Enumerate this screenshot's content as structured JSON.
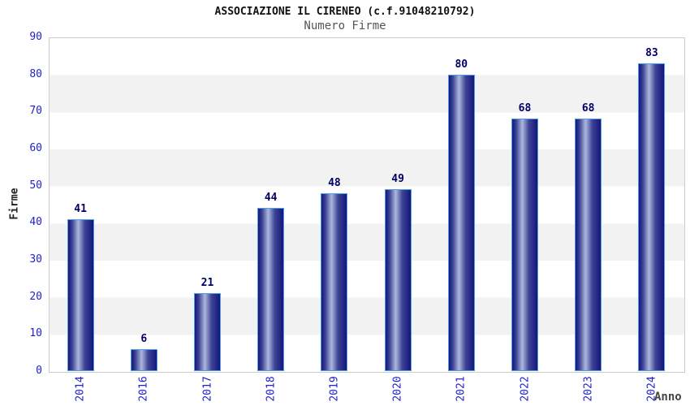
{
  "header": {
    "title": "ASSOCIAZIONE IL CIRENEO (c.f.91048210792)",
    "subtitle": "Numero Firme"
  },
  "chart_data": {
    "type": "bar",
    "title": "ASSOCIAZIONE IL CIRENEO (c.f.91048210792)",
    "subtitle": "Numero Firme",
    "categories": [
      "2014",
      "2016",
      "2017",
      "2018",
      "2019",
      "2020",
      "2021",
      "2022",
      "2023",
      "2024"
    ],
    "values": [
      41,
      6,
      21,
      44,
      48,
      49,
      80,
      68,
      68,
      83
    ],
    "xlabel": "Anno",
    "ylabel": "Firme",
    "ylim": [
      0,
      90
    ],
    "ytick_step": 10,
    "yticks": [
      0,
      10,
      20,
      30,
      40,
      50,
      60,
      70,
      80,
      90
    ],
    "grid": "alternating-horizontal-bands",
    "legend": "none",
    "bar_value_labels": true
  },
  "colors": {
    "bar_edge": "#16167a",
    "bar_mid": "#3c4496",
    "bar_highlight": "#aeb8dc",
    "bar_border": "#4aa0e8",
    "tick_label": "#2222cc",
    "value_label": "#000066",
    "band_gray": "#f2f2f2",
    "band_white": "#ffffff",
    "plot_border": "#cccccc",
    "title_color": "#111111",
    "subtitle_color": "#555555"
  }
}
